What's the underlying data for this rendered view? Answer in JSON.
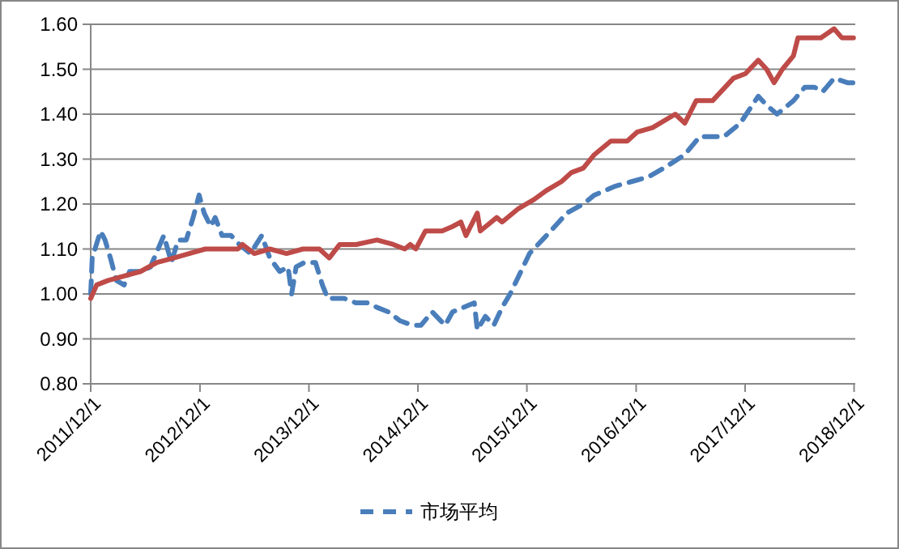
{
  "chart_data": {
    "type": "line",
    "ylim": [
      0.8,
      1.6
    ],
    "yticks": [
      {
        "value": 0.8,
        "label": "0.80"
      },
      {
        "value": 0.9,
        "label": "0.90"
      },
      {
        "value": 1.0,
        "label": "1.00"
      },
      {
        "value": 1.1,
        "label": "1.10"
      },
      {
        "value": 1.2,
        "label": "1.20"
      },
      {
        "value": 1.3,
        "label": "1.30"
      },
      {
        "value": 1.4,
        "label": "1.40"
      },
      {
        "value": 1.5,
        "label": "1.50"
      },
      {
        "value": 1.6,
        "label": "1.60"
      }
    ],
    "xlim": [
      "2011-12-01",
      "2018-12-05"
    ],
    "xticks": [
      {
        "value": "2011-12-01",
        "label": "2011/12/1"
      },
      {
        "value": "2012-12-01",
        "label": "2012/12/1"
      },
      {
        "value": "2013-12-01",
        "label": "2013/12/1"
      },
      {
        "value": "2014-12-01",
        "label": "2014/12/1"
      },
      {
        "value": "2015-12-01",
        "label": "2015/12/1"
      },
      {
        "value": "2016-12-01",
        "label": "2016/12/1"
      },
      {
        "value": "2017-12-01",
        "label": "2017/12/1"
      },
      {
        "value": "2018-12-01",
        "label": "2018/12/1"
      }
    ],
    "grid": "y",
    "legend": "bottom",
    "marker": "none",
    "series": [
      {
        "name": "市场平均",
        "color": "#4a7ebb",
        "line_style": "dashed",
        "x": [
          "2011-12-01",
          "2011-12-06",
          "2012-01-03",
          "2012-01-18",
          "2012-02-05",
          "2012-02-25",
          "2012-03-22",
          "2012-04-09",
          "2012-05-16",
          "2012-06-18",
          "2012-08-02",
          "2012-08-27",
          "2012-09-19",
          "2012-10-16",
          "2012-11-08",
          "2012-11-28",
          "2012-12-15",
          "2013-01-06",
          "2013-01-21",
          "2013-02-13",
          "2013-03-15",
          "2013-04-12",
          "2013-05-19",
          "2013-06-26",
          "2013-07-23",
          "2013-08-25",
          "2013-09-22",
          "2013-10-04",
          "2013-10-19",
          "2013-11-16",
          "2013-12-23",
          "2014-01-15",
          "2014-02-02",
          "2014-02-27",
          "2014-03-29",
          "2014-05-08",
          "2014-06-15",
          "2014-07-17",
          "2014-08-24",
          "2014-10-03",
          "2014-11-14",
          "2014-12-11",
          "2015-01-18",
          "2015-03-02",
          "2015-03-27",
          "2015-06-08",
          "2015-06-18",
          "2015-07-15",
          "2015-08-12",
          "2015-09-09",
          "2015-10-06",
          "2015-12-10",
          "2016-02-19",
          "2016-04-13",
          "2016-06-07",
          "2016-07-14",
          "2016-09-23",
          "2016-11-16",
          "2017-01-10",
          "2017-03-04",
          "2017-05-13",
          "2017-07-02",
          "2017-07-27",
          "2017-09-21",
          "2017-11-15",
          "2018-01-14",
          "2018-02-11",
          "2018-03-18",
          "2018-05-12",
          "2018-06-19",
          "2018-07-21",
          "2018-08-18",
          "2018-09-25",
          "2018-11-09",
          "2018-11-29"
        ],
        "values": [
          1.0,
          1.08,
          1.14,
          1.12,
          1.08,
          1.03,
          1.02,
          1.05,
          1.05,
          1.06,
          1.13,
          1.07,
          1.12,
          1.12,
          1.17,
          1.22,
          1.18,
          1.15,
          1.17,
          1.13,
          1.13,
          1.11,
          1.09,
          1.13,
          1.08,
          1.05,
          1.06,
          1.0,
          1.06,
          1.07,
          1.07,
          1.02,
          0.99,
          0.99,
          0.99,
          0.98,
          0.98,
          0.97,
          0.96,
          0.94,
          0.93,
          0.93,
          0.96,
          0.93,
          0.96,
          0.98,
          0.92,
          0.95,
          0.93,
          0.97,
          1.0,
          1.09,
          1.14,
          1.18,
          1.2,
          1.22,
          1.24,
          1.25,
          1.26,
          1.28,
          1.31,
          1.35,
          1.35,
          1.35,
          1.38,
          1.44,
          1.42,
          1.4,
          1.43,
          1.46,
          1.46,
          1.45,
          1.48,
          1.47,
          1.47
        ]
      },
      {
        "color": "#be4b48",
        "line_style": "solid",
        "x": [
          "2011-12-01",
          "2011-12-21",
          "2012-01-28",
          "2012-03-22",
          "2012-05-16",
          "2012-07-10",
          "2012-09-04",
          "2012-10-26",
          "2012-12-19",
          "2013-01-21",
          "2013-04-07",
          "2013-04-22",
          "2013-06-01",
          "2013-07-23",
          "2013-09-17",
          "2013-11-11",
          "2014-01-05",
          "2014-02-07",
          "2014-03-14",
          "2014-05-08",
          "2014-07-17",
          "2014-09-10",
          "2014-10-18",
          "2014-11-05",
          "2014-11-24",
          "2014-12-26",
          "2015-02-20",
          "2015-03-27",
          "2015-04-24",
          "2015-05-11",
          "2015-06-18",
          "2015-06-28",
          "2015-08-22",
          "2015-09-09",
          "2015-11-03",
          "2015-12-25",
          "2016-02-04",
          "2016-03-26",
          "2016-04-28",
          "2016-06-07",
          "2016-07-14",
          "2016-09-07",
          "2016-11-01",
          "2016-12-04",
          "2017-01-25",
          "2017-04-11",
          "2017-05-13",
          "2017-06-20",
          "2017-08-14",
          "2017-10-23",
          "2017-12-02",
          "2018-01-14",
          "2018-02-11",
          "2018-03-08",
          "2018-04-05",
          "2018-05-12",
          "2018-05-27",
          "2018-06-19",
          "2018-08-12",
          "2018-09-25",
          "2018-10-21",
          "2018-11-29"
        ],
        "values": [
          0.99,
          1.02,
          1.03,
          1.04,
          1.05,
          1.07,
          1.08,
          1.09,
          1.1,
          1.1,
          1.1,
          1.11,
          1.09,
          1.1,
          1.09,
          1.1,
          1.1,
          1.08,
          1.11,
          1.11,
          1.12,
          1.11,
          1.1,
          1.11,
          1.1,
          1.14,
          1.14,
          1.15,
          1.16,
          1.13,
          1.18,
          1.14,
          1.17,
          1.16,
          1.19,
          1.21,
          1.23,
          1.25,
          1.27,
          1.28,
          1.31,
          1.34,
          1.34,
          1.36,
          1.37,
          1.4,
          1.38,
          1.43,
          1.43,
          1.48,
          1.49,
          1.52,
          1.5,
          1.47,
          1.5,
          1.53,
          1.57,
          1.57,
          1.57,
          1.59,
          1.57,
          1.57
        ]
      }
    ]
  }
}
